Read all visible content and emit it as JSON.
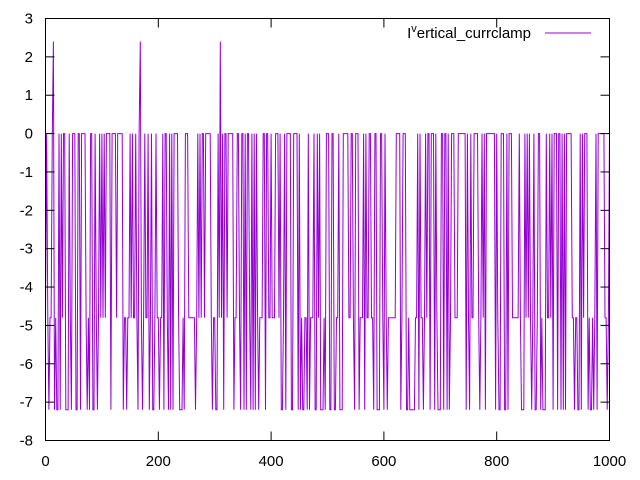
{
  "chart_data": {
    "type": "line",
    "title": "",
    "xlabel": "",
    "ylabel": "",
    "xlim": [
      0,
      1000
    ],
    "ylim": [
      -8,
      3
    ],
    "grid": false,
    "legend_position": "top-right",
    "x_ticks": [
      "0",
      "200",
      "400",
      "600",
      "800",
      "1000"
    ],
    "y_ticks": [
      "3",
      "2",
      "1",
      "0",
      "-1",
      "-2",
      "-3",
      "-4",
      "-5",
      "-6",
      "-7",
      "-8"
    ],
    "series": [
      {
        "name": "I^vertical_currclamp",
        "color": "#9400d3",
        "levels": [
          0,
          -4.8,
          -7.2,
          2.4
        ],
        "spikes_x": [
          14,
          168,
          175,
          310
        ],
        "spike_value": 2.4,
        "x_start": 0,
        "x_end": 1000,
        "x_step": 2
      }
    ]
  }
}
